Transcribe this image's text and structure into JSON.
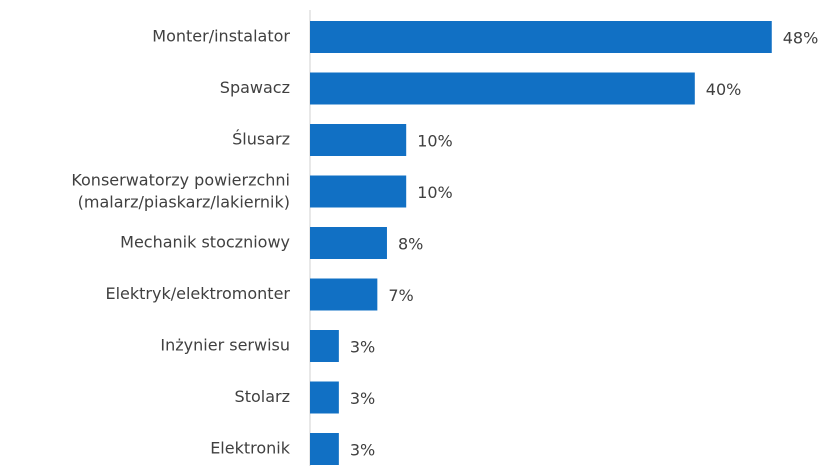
{
  "chart_data": {
    "type": "barh",
    "categories": [
      "Monter/instalator",
      "Spawacz",
      "Ślusarz",
      "Konserwatorzy powierzchni (malarz/piaskarz/lakiernik)",
      "Mechanik stoczniowy",
      "Elektryk/elektromonter",
      "Inżynier serwisu",
      "Stolarz",
      "Elektronik"
    ],
    "values": [
      48,
      40,
      10,
      10,
      8,
      7,
      3,
      3,
      3
    ],
    "value_labels": [
      "48%",
      "40%",
      "10%",
      "10%",
      "8%",
      "7%",
      "3%",
      "3%",
      "3%"
    ],
    "color": "#1170c4",
    "xlim": [
      0,
      50
    ]
  }
}
